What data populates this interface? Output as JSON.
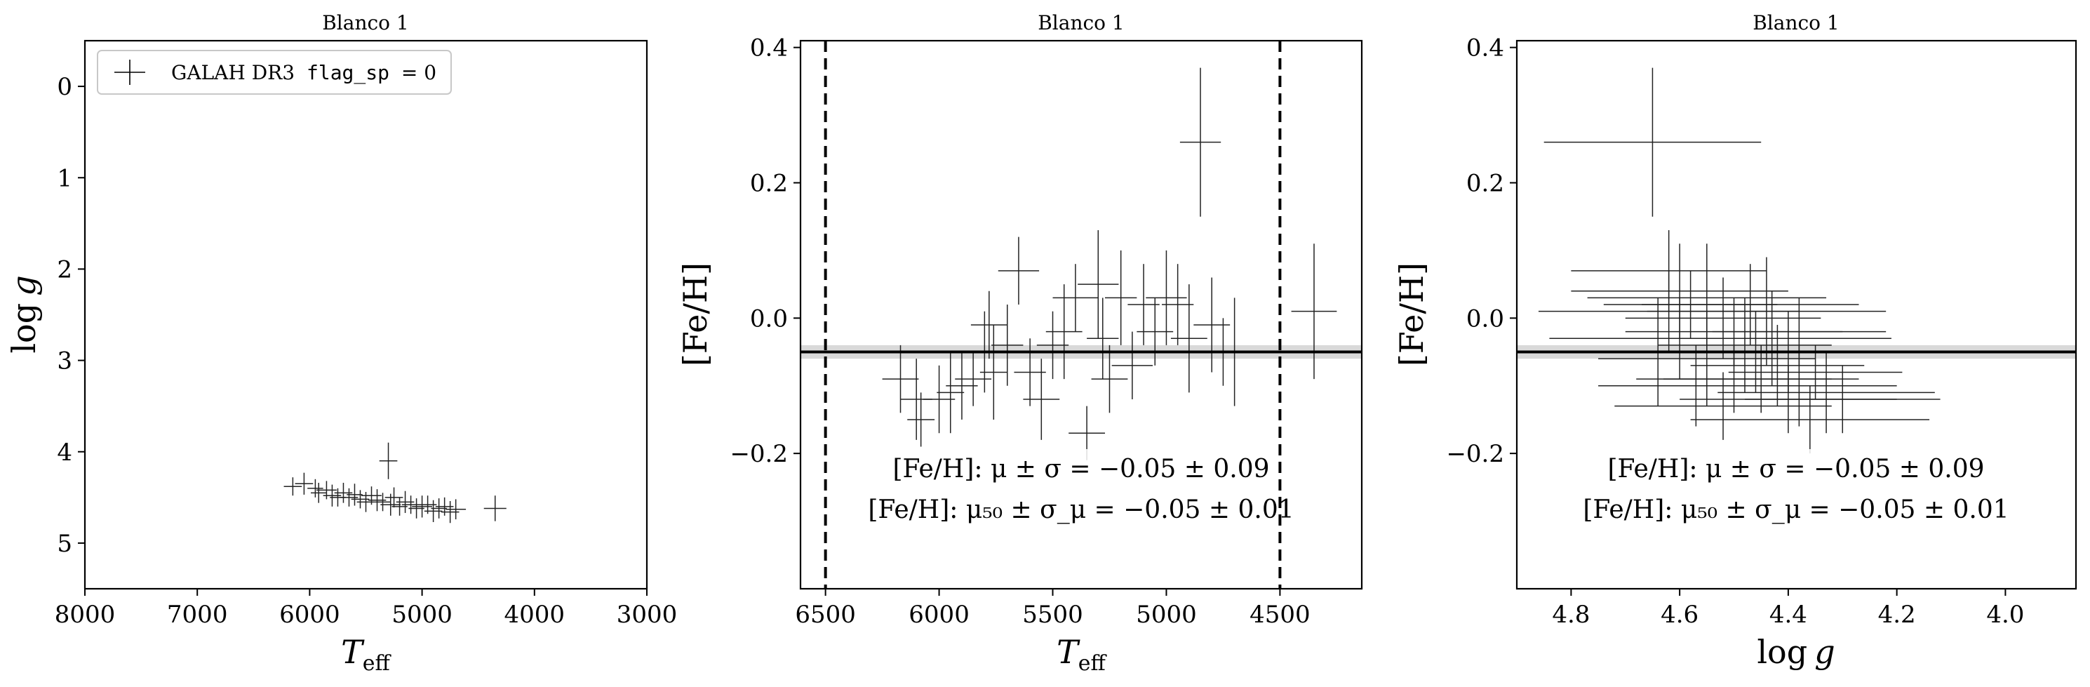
{
  "chart_data": [
    {
      "type": "scatter",
      "title": "Blanco 1",
      "xlabel": "T_eff",
      "ylabel": "log g",
      "xlim": [
        8000,
        3000
      ],
      "ylim": [
        5.5,
        -0.5
      ],
      "x_ticks": [
        "8000",
        "7000",
        "6000",
        "5000",
        "4000",
        "3000"
      ],
      "y_ticks": [
        "0",
        "1",
        "2",
        "3",
        "4",
        "5"
      ],
      "legend": {
        "text": "GALAH DR3",
        "code": "flag_sp",
        "suffix": "= 0",
        "placement": "top-left"
      },
      "series": [
        {
          "name": "GALAH DR3 flag_sp = 0",
          "points": [
            [
              6150,
              4.38,
              80,
              0.1
            ],
            [
              6050,
              4.35,
              80,
              0.12
            ],
            [
              5950,
              4.4,
              70,
              0.1
            ],
            [
              5920,
              4.45,
              70,
              0.11
            ],
            [
              5850,
              4.42,
              90,
              0.1
            ],
            [
              5800,
              4.48,
              80,
              0.12
            ],
            [
              5750,
              4.5,
              70,
              0.1
            ],
            [
              5700,
              4.45,
              80,
              0.11
            ],
            [
              5650,
              4.5,
              80,
              0.1
            ],
            [
              5600,
              4.47,
              70,
              0.12
            ],
            [
              5550,
              4.52,
              80,
              0.1
            ],
            [
              5500,
              4.55,
              80,
              0.11
            ],
            [
              5450,
              4.48,
              90,
              0.1
            ],
            [
              5400,
              4.53,
              80,
              0.12
            ],
            [
              5350,
              4.55,
              70,
              0.1
            ],
            [
              5300,
              4.1,
              80,
              0.2
            ],
            [
              5280,
              4.58,
              90,
              0.12
            ],
            [
              5250,
              4.5,
              80,
              0.11
            ],
            [
              5200,
              4.6,
              70,
              0.1
            ],
            [
              5150,
              4.55,
              80,
              0.12
            ],
            [
              5100,
              4.58,
              80,
              0.1
            ],
            [
              5050,
              4.62,
              70,
              0.11
            ],
            [
              5000,
              4.6,
              90,
              0.12
            ],
            [
              4950,
              4.58,
              80,
              0.1
            ],
            [
              4900,
              4.65,
              80,
              0.12
            ],
            [
              4850,
              4.62,
              70,
              0.11
            ],
            [
              4800,
              4.6,
              80,
              0.1
            ],
            [
              4750,
              4.66,
              80,
              0.12
            ],
            [
              4700,
              4.63,
              90,
              0.11
            ],
            [
              4350,
              4.62,
              100,
              0.14
            ]
          ]
        }
      ]
    },
    {
      "type": "scatter",
      "title": "Blanco 1",
      "xlabel": "T_eff",
      "ylabel": "[Fe/H]",
      "xlim": [
        6610,
        4140
      ],
      "ylim": [
        -0.4,
        0.41
      ],
      "x_ticks": [
        "6500",
        "6000",
        "5500",
        "5000",
        "4500"
      ],
      "y_ticks": [
        "−0.2",
        "0.0",
        "0.2",
        "0.4"
      ],
      "vlines": [
        6500,
        4500
      ],
      "hline": {
        "y": -0.05,
        "band": [
          -0.06,
          -0.04
        ]
      },
      "annotations": [
        "[Fe/H]: μ ± σ = −0.05 ± 0.09",
        "[Fe/H]: μ₅₀ ± σ_μ = −0.05 ± 0.01"
      ],
      "series": [
        {
          "name": "GALAH DR3 flag_sp = 0",
          "points": [
            [
              6170,
              -0.09,
              80,
              0.05
            ],
            [
              6100,
              -0.12,
              70,
              0.06
            ],
            [
              6080,
              -0.15,
              60,
              0.04
            ],
            [
              6000,
              -0.12,
              70,
              0.05
            ],
            [
              5950,
              -0.11,
              60,
              0.06
            ],
            [
              5900,
              -0.1,
              70,
              0.05
            ],
            [
              5850,
              -0.09,
              80,
              0.04
            ],
            [
              5800,
              -0.05,
              70,
              0.06
            ],
            [
              5780,
              -0.01,
              80,
              0.05
            ],
            [
              5760,
              -0.08,
              60,
              0.07
            ],
            [
              5700,
              -0.04,
              70,
              0.06
            ],
            [
              5650,
              0.07,
              90,
              0.05
            ],
            [
              5600,
              -0.08,
              70,
              0.05
            ],
            [
              5550,
              -0.12,
              80,
              0.06
            ],
            [
              5500,
              -0.04,
              70,
              0.05
            ],
            [
              5450,
              -0.02,
              80,
              0.07
            ],
            [
              5400,
              0.03,
              100,
              0.05
            ],
            [
              5350,
              -0.17,
              80,
              0.04
            ],
            [
              5300,
              0.05,
              90,
              0.08
            ],
            [
              5280,
              -0.03,
              70,
              0.06
            ],
            [
              5250,
              -0.09,
              80,
              0.05
            ],
            [
              5200,
              0.03,
              70,
              0.07
            ],
            [
              5150,
              -0.07,
              90,
              0.05
            ],
            [
              5100,
              0.02,
              70,
              0.06
            ],
            [
              5050,
              -0.02,
              80,
              0.05
            ],
            [
              5000,
              0.03,
              90,
              0.07
            ],
            [
              4950,
              0.02,
              70,
              0.06
            ],
            [
              4900,
              -0.03,
              80,
              0.08
            ],
            [
              4850,
              0.26,
              90,
              0.11
            ],
            [
              4800,
              -0.01,
              80,
              0.07
            ],
            [
              4750,
              -0.05,
              70,
              0.05
            ],
            [
              4700,
              -0.05,
              80,
              0.08
            ],
            [
              4350,
              0.01,
              100,
              0.1
            ]
          ]
        }
      ]
    },
    {
      "type": "scatter",
      "title": "Blanco 1",
      "xlabel": "log g",
      "ylabel": "[Fe/H]",
      "xlim": [
        4.9,
        3.87
      ],
      "ylim": [
        -0.4,
        0.41
      ],
      "x_ticks": [
        "4.8",
        "4.6",
        "4.4",
        "4.2",
        "4.0"
      ],
      "y_ticks": [
        "−0.2",
        "0.0",
        "0.2",
        "0.4"
      ],
      "hline": {
        "y": -0.05,
        "band": [
          -0.06,
          -0.04
        ]
      },
      "annotations": [
        "[Fe/H]: μ ± σ = −0.05 ± 0.09",
        "[Fe/H]: μ₅₀ ± σ_μ = −0.05 ± 0.01"
      ],
      "series": [
        {
          "name": "GALAH DR3 flag_sp = 0",
          "points": [
            [
              4.65,
              0.26,
              0.2,
              0.11
            ],
            [
              4.62,
              0.07,
              0.18,
              0.06
            ],
            [
              4.6,
              0.04,
              0.2,
              0.07
            ],
            [
              4.58,
              0.02,
              0.16,
              0.05
            ],
            [
              4.55,
              0.03,
              0.22,
              0.08
            ],
            [
              4.52,
              0.0,
              0.18,
              0.06
            ],
            [
              4.5,
              -0.02,
              0.2,
              0.05
            ],
            [
              4.48,
              -0.04,
              0.16,
              0.07
            ],
            [
              4.46,
              -0.05,
              0.2,
              0.06
            ],
            [
              4.45,
              -0.09,
              0.18,
              0.05
            ],
            [
              4.44,
              0.01,
              0.22,
              0.08
            ],
            [
              4.42,
              -0.07,
              0.16,
              0.06
            ],
            [
              4.4,
              -0.12,
              0.2,
              0.05
            ],
            [
              4.38,
              -0.1,
              0.18,
              0.06
            ],
            [
              4.36,
              -0.15,
              0.22,
              0.05
            ],
            [
              4.35,
              -0.08,
              0.16,
              0.04
            ],
            [
              4.33,
              -0.11,
              0.2,
              0.06
            ],
            [
              4.3,
              -0.12,
              0.18,
              0.05
            ],
            [
              4.6,
              -0.03,
              0.24,
              0.06
            ],
            [
              4.55,
              -0.06,
              0.2,
              0.07
            ],
            [
              4.5,
              -0.09,
              0.18,
              0.05
            ],
            [
              4.47,
              0.02,
              0.2,
              0.06
            ],
            [
              4.43,
              -0.03,
              0.22,
              0.07
            ],
            [
              4.57,
              -0.1,
              0.18,
              0.06
            ],
            [
              4.52,
              -0.13,
              0.2,
              0.05
            ],
            [
              4.4,
              -0.05,
              0.18,
              0.06
            ],
            [
              4.38,
              -0.02,
              0.16,
              0.05
            ],
            [
              4.64,
              -0.05,
              0.22,
              0.08
            ],
            [
              4.62,
              0.01,
              0.24,
              0.06
            ]
          ]
        }
      ]
    }
  ]
}
